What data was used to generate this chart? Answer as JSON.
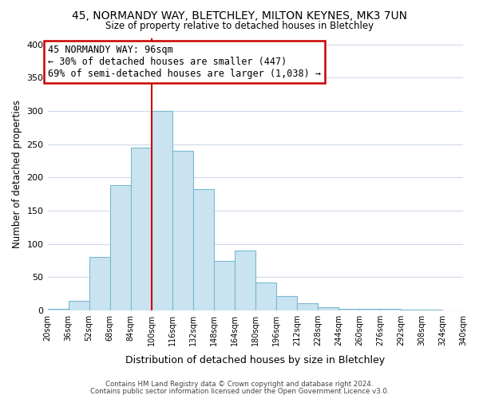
{
  "title": "45, NORMANDY WAY, BLETCHLEY, MILTON KEYNES, MK3 7UN",
  "subtitle": "Size of property relative to detached houses in Bletchley",
  "xlabel": "Distribution of detached houses by size in Bletchley",
  "ylabel": "Number of detached properties",
  "bar_labels": [
    "20sqm",
    "36sqm",
    "52sqm",
    "68sqm",
    "84sqm",
    "100sqm",
    "116sqm",
    "132sqm",
    "148sqm",
    "164sqm",
    "180sqm",
    "196sqm",
    "212sqm",
    "228sqm",
    "244sqm",
    "260sqm",
    "276sqm",
    "292sqm",
    "308sqm",
    "324sqm",
    "340sqm"
  ],
  "bar_values": [
    3,
    15,
    80,
    188,
    245,
    300,
    240,
    182,
    75,
    90,
    42,
    22,
    11,
    5,
    3,
    3,
    2,
    1,
    1,
    0
  ],
  "bar_color": "#c9e4f0",
  "bar_edge_color": "#7ab8d4",
  "vline_x_index": 5,
  "vline_color": "#cc0000",
  "ylim": [
    0,
    410
  ],
  "yticks": [
    0,
    50,
    100,
    150,
    200,
    250,
    300,
    350,
    400
  ],
  "annotation_box_text": "45 NORMANDY WAY: 96sqm\n← 30% of detached houses are smaller (447)\n69% of semi-detached houses are larger (1,038) →",
  "footer_line1": "Contains HM Land Registry data © Crown copyright and database right 2024.",
  "footer_line2": "Contains public sector information licensed under the Open Government Licence v3.0.",
  "background_color": "#ffffff",
  "grid_color": "#d0daea"
}
